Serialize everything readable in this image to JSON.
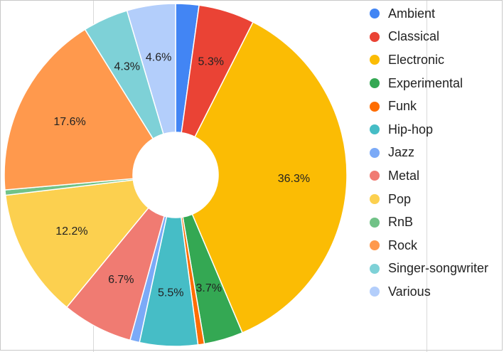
{
  "chart_data": {
    "type": "pie",
    "donut": true,
    "legend_position": "right",
    "categories": [
      "Ambient",
      "Classical",
      "Electronic",
      "Experimental",
      "Funk",
      "Hip-hop",
      "Jazz",
      "Metal",
      "Pop",
      "RnB",
      "Rock",
      "Singer-songwriter",
      "Various"
    ],
    "values": [
      2.2,
      5.3,
      36.3,
      3.7,
      0.6,
      5.5,
      0.9,
      6.7,
      12.2,
      0.5,
      17.6,
      4.3,
      4.6
    ],
    "data_labels": [
      "",
      "5.3%",
      "36.3%",
      "3.7%",
      "",
      "5.5%",
      "",
      "6.7%",
      "12.2%",
      "",
      "17.6%",
      "4.3%",
      "4.6%"
    ],
    "colors": [
      "#4285f4",
      "#ea4335",
      "#fbbc04",
      "#34a853",
      "#ff6d01",
      "#46bdc6",
      "#7baaf7",
      "#f07b72",
      "#fcd04f",
      "#71c287",
      "#ff994d",
      "#7ed1d7",
      "#b3cefb"
    ]
  }
}
